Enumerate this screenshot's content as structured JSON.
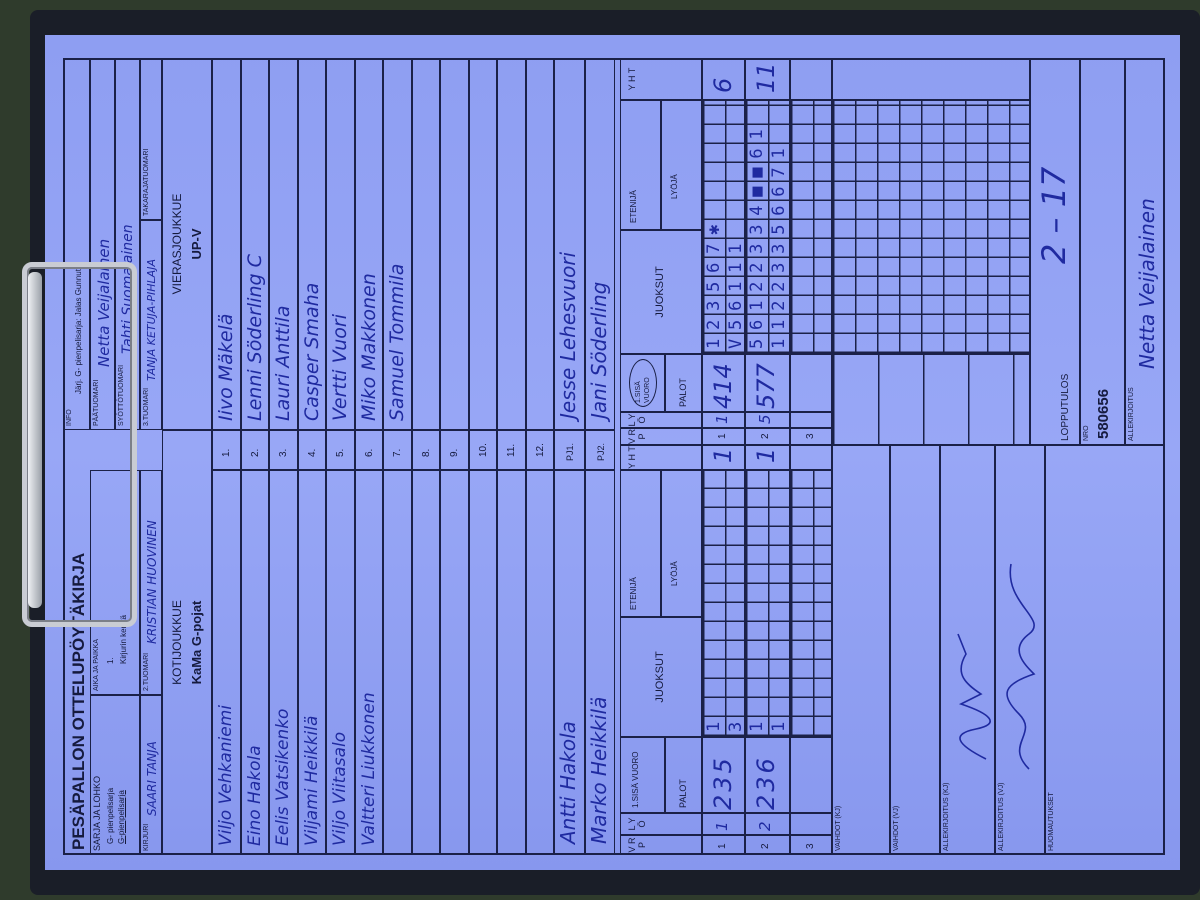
{
  "form": {
    "title": "PESÄPALLON OTTELUPÖYTÄKIRJA",
    "series_label": "SARJA JA LOHKO",
    "series_values": [
      "G- pienpelisarja",
      "G-pienpelisarja"
    ],
    "time_place_label": "AIKA JA PAIKKA",
    "time_place_values": [
      "1.",
      "Kirjurin kenttä"
    ],
    "scribe_label": "KIRJURI",
    "scribe": "SAARI TANJA",
    "umpire2_label": "2.TUOMARI",
    "umpire2": "KRISTIAN HUOVINEN",
    "info_label": "INFO",
    "info": "Järj. G- pienpelisarja: Jalas Gunnut",
    "head_umpire_label": "PÄÄTUOMARI",
    "head_umpire": "Netta Veijalainen",
    "pitch_umpire_label": "SYÖTTÖTUOMARI",
    "pitch_umpire": "Tahti Suomalainen",
    "umpire3_label": "3.TUOMARI",
    "umpire3": "TANJA KETUJA-PIHLAJA",
    "back_umpire_label": "TAKARAJATUOMARI"
  },
  "home": {
    "label": "KOTIJOUKKUE",
    "team": "KaMa G-pojat",
    "players": [
      "Viljo Vehkaniemi",
      "Eino Hakola",
      "Eelis Vatsikenko",
      "Viljami Heikkilä",
      "Viljo Viitasalo",
      "Valtteri Liukkonen",
      "",
      "",
      "",
      "",
      "",
      ""
    ],
    "coaches": [
      "Antti Hakola",
      "Marko Heikkilä"
    ]
  },
  "visitor": {
    "label": "VIERASJOUKKUE",
    "team": "UP-V",
    "players": [
      "Iivo Mäkelä",
      "Lenni Söderling  C",
      "Lauri Anttila",
      "Casper Smaha",
      "Vertti Vuori",
      "Miko Makkonen",
      "Samuel Tommila",
      "",
      "",
      "",
      "",
      ""
    ],
    "coaches": [
      "Jesse Lehesvuori",
      "Jani Söderling"
    ]
  },
  "numbers": [
    "1.",
    "2.",
    "3.",
    "4.",
    "5.",
    "6.",
    "7.",
    "8.",
    "9.",
    "10.",
    "11.",
    "12."
  ],
  "coach_labels": [
    "PJ1.",
    "PJ2."
  ],
  "score_labels": {
    "vrp": "V R P",
    "lyo": "L Y Ö",
    "first_inning": "1.SISÄ VUORO",
    "outs": "PALOT",
    "runs": "JUOKSUT",
    "runner": "ETENIJÄ",
    "batter": "LYÖJÄ",
    "total": "Y H T"
  },
  "home_innings": [
    {
      "period": "1",
      "batter": "1",
      "outs": "235",
      "runs_top": "1",
      "runs_bottom": "3",
      "total": "1"
    },
    {
      "period": "2",
      "batter": "2",
      "outs": "236",
      "runs_top": "1",
      "runs_bottom": "1",
      "total": "1"
    },
    {
      "period": "3",
      "batter": "",
      "outs": "",
      "runs_top": "",
      "runs_bottom": "",
      "total": ""
    }
  ],
  "visitor_innings": [
    {
      "period": "1",
      "batter": "1",
      "outs": "414",
      "runs_top": "123567✱",
      "runs_bottom": "V56111",
      "total": "6"
    },
    {
      "period": "2",
      "batter": "5",
      "outs": "577",
      "runs_top": "56122334■■61",
      "runs_bottom": "11223356671",
      "total": "11"
    },
    {
      "period": "3",
      "batter": "",
      "outs": "",
      "runs_top": "",
      "runs_bottom": "",
      "total": ""
    }
  ],
  "bottom": {
    "subs_home_label": "VAIHDOT (KJ)",
    "subs_visitor_label": "VAIHDOT (VJ)",
    "sign_home_label": "ALLEKIRJOITUS (KJ)",
    "sign_visitor_label": "ALLEKIRJOITUS (VJ)",
    "remarks_label": "HUOMAUTUKSET",
    "final_label": "LOPPUTULOS",
    "final_score": "2 – 17",
    "nro_label": "NRO",
    "nro": "580656",
    "signature_label": "ALLEKIRJOITUS",
    "signature": "Netta Veijalainen"
  },
  "colors": {
    "paper": "#8f9ff2",
    "ink": "#1f2aa0",
    "lines": "#1b2148"
  }
}
